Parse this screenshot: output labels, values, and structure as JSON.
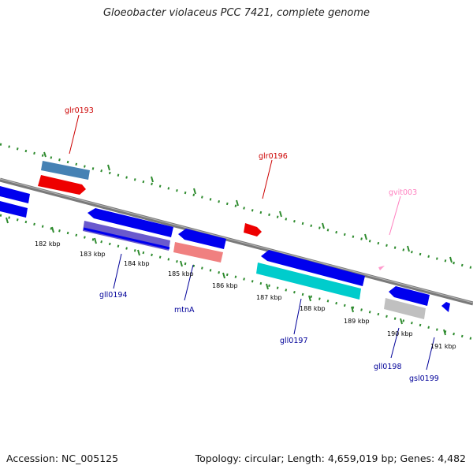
{
  "title": "Gloeobacter violaceus PCC 7421, complete genome",
  "footer": {
    "accession": "Accession: NC_005125",
    "summary": "Topology: circular; Length: 4,659,019 bp; Genes: 4,482"
  },
  "colors": {
    "backbone": "#7a7a7a",
    "ticks": "#2e8b2e",
    "tick_label": "#000000",
    "label_forward": "#cc0000",
    "label_reverse": "#000099",
    "label_tRNA": "#ff80c0",
    "gene_blue": "#0000ee",
    "gene_red": "#ee0000",
    "gene_steel": "#4682b4",
    "gene_slate": "#6a5acd",
    "gene_salmon": "#f08080",
    "gene_cyan": "#00cccc",
    "gene_gray": "#c0c0c0",
    "tRNA_pink": "#ff99cc"
  },
  "tick_labels": [
    "182 kbp",
    "183 kbp",
    "184 kbp",
    "185 kbp",
    "186 kbp",
    "187 kbp",
    "188 kbp",
    "189 kbp",
    "190 kbp",
    "191 kbp"
  ],
  "gene_labels": [
    {
      "id": "glr0193",
      "text": "glr0193",
      "strand": "forward"
    },
    {
      "id": "glr0196",
      "text": "glr0196",
      "strand": "forward"
    },
    {
      "id": "gvit003",
      "text": "gvit003",
      "strand": "tRNA"
    },
    {
      "id": "gll0194",
      "text": "gll0194",
      "strand": "reverse"
    },
    {
      "id": "mtnA",
      "text": "mtnA",
      "strand": "reverse"
    },
    {
      "id": "gll0197",
      "text": "gll0197",
      "strand": "reverse"
    },
    {
      "id": "gll0198",
      "text": "gll0198",
      "strand": "reverse"
    },
    {
      "id": "gsl0199",
      "text": "gsl0199",
      "strand": "reverse"
    }
  ]
}
